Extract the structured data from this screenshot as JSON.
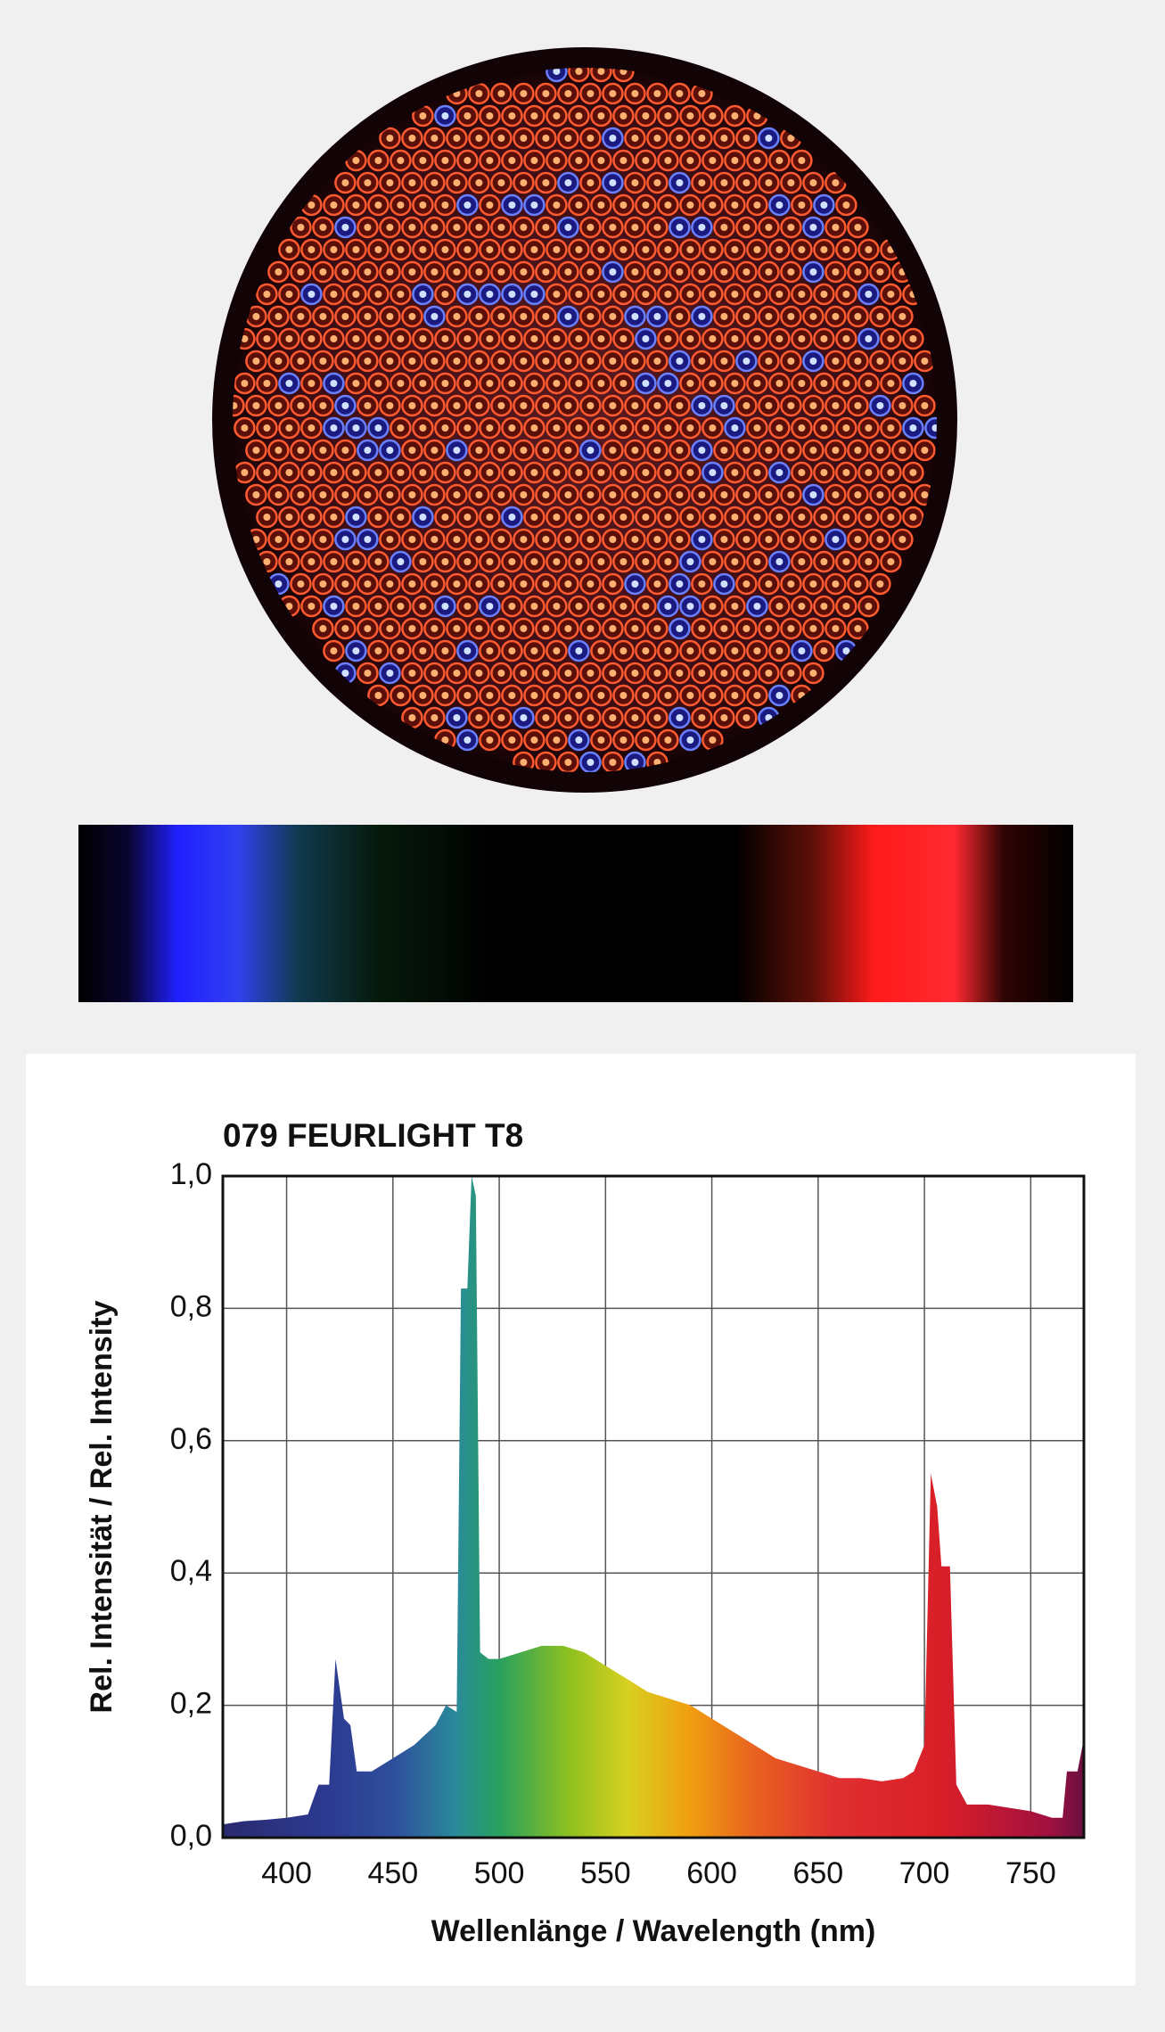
{
  "chart_data": {
    "type": "area",
    "title": "079 FEURLIGHT T8",
    "x_label": "Wellenlänge / Wavelength (nm)",
    "y_label": "Rel. Intensität / Rel. Intensity",
    "x": [
      370,
      380,
      390,
      400,
      410,
      415,
      420,
      423,
      427,
      430,
      433,
      440,
      450,
      460,
      470,
      475,
      480,
      482,
      485,
      487,
      489,
      491,
      495,
      500,
      510,
      520,
      530,
      540,
      550,
      560,
      570,
      580,
      590,
      600,
      610,
      620,
      630,
      640,
      650,
      660,
      670,
      680,
      690,
      695,
      700,
      703,
      706,
      708,
      712,
      715,
      720,
      730,
      740,
      750,
      760,
      765,
      767,
      772,
      775
    ],
    "values": [
      0.02,
      0.025,
      0.027,
      0.03,
      0.035,
      0.08,
      0.08,
      0.27,
      0.18,
      0.17,
      0.1,
      0.1,
      0.12,
      0.14,
      0.17,
      0.2,
      0.19,
      0.83,
      0.83,
      1.0,
      0.97,
      0.28,
      0.27,
      0.27,
      0.28,
      0.29,
      0.29,
      0.28,
      0.26,
      0.24,
      0.22,
      0.21,
      0.2,
      0.18,
      0.16,
      0.14,
      0.12,
      0.11,
      0.1,
      0.09,
      0.09,
      0.085,
      0.09,
      0.1,
      0.14,
      0.55,
      0.5,
      0.41,
      0.41,
      0.08,
      0.05,
      0.05,
      0.045,
      0.04,
      0.03,
      0.03,
      0.1,
      0.1,
      0.15
    ],
    "xlim": [
      370,
      775
    ],
    "ylim": [
      0,
      1
    ],
    "xticks": [
      400,
      450,
      500,
      550,
      600,
      650,
      700,
      750
    ],
    "yticks": [
      {
        "value": 0,
        "label": "0,0"
      },
      {
        "value": 0.2,
        "label": "0,2"
      },
      {
        "value": 0.4,
        "label": "0,4"
      },
      {
        "value": 0.6,
        "label": "0,6"
      },
      {
        "value": 0.8,
        "label": "0,8"
      },
      {
        "value": 1,
        "label": "1,0"
      }
    ],
    "grid": true
  }
}
